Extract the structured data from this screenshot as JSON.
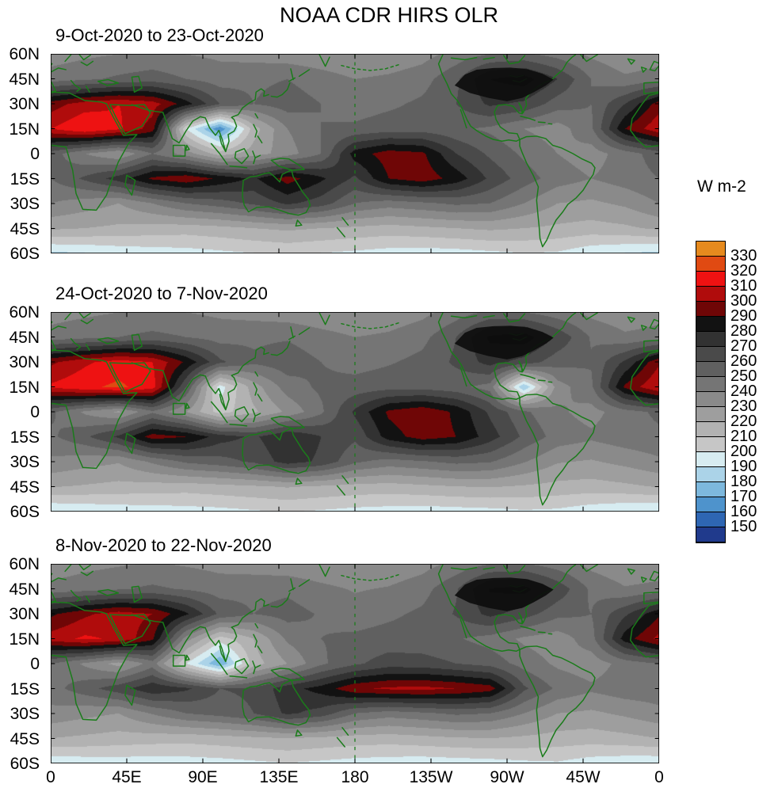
{
  "title": "NOAA CDR HIRS OLR",
  "colors": {
    "coastline_green": "#1a7c1a",
    "frame_black": "#000000",
    "us_boundaries_black": "#0d0d0d",
    "background": "#ffffff"
  },
  "axes": {
    "y_tick_labels": [
      "60N",
      "45N",
      "30N",
      "15N",
      "0",
      "15S",
      "30S",
      "45S",
      "60S"
    ],
    "x_tick_labels": [
      "0",
      "45E",
      "90E",
      "135E",
      "180",
      "135W",
      "90W",
      "45W",
      "0"
    ]
  },
  "colorbar": {
    "label": "W m-2",
    "tick_labels": [
      "330",
      "320",
      "310",
      "300",
      "290",
      "280",
      "270",
      "260",
      "250",
      "240",
      "230",
      "220",
      "210",
      "200",
      "190",
      "180",
      "170",
      "160",
      "150"
    ]
  },
  "chart_data": {
    "type": "heatmap",
    "title": "NOAA CDR HIRS OLR",
    "units": "W m-2",
    "projection": "equirectangular",
    "lon_range": [
      0,
      360
    ],
    "lat_range": [
      60,
      -60
    ],
    "grid_lons": [
      0,
      20,
      40,
      60,
      80,
      100,
      120,
      140,
      160,
      180,
      200,
      220,
      240,
      260,
      280,
      300,
      320,
      340,
      360
    ],
    "grid_lats": [
      60,
      45,
      30,
      15,
      0,
      -15,
      -30,
      -45,
      -60
    ],
    "levels": [
      150,
      160,
      170,
      180,
      190,
      200,
      210,
      220,
      230,
      240,
      250,
      260,
      270,
      280,
      290,
      300,
      310,
      320,
      330
    ],
    "colors_low_to_high": [
      "#203a8c",
      "#2e66b3",
      "#4e93cc",
      "#7db8dd",
      "#abd3e8",
      "#d7ecf1",
      "#c6c6c6",
      "#b2b2b2",
      "#9e9e9e",
      "#8a8a8a",
      "#757575",
      "#606060",
      "#4a4a4a",
      "#323232",
      "#121212",
      "#6f0606",
      "#b00c0c",
      "#ee1212",
      "#e04a12",
      "#e68a1e"
    ],
    "panels": [
      {
        "title": "9-Oct-2020 to 23-Oct-2020",
        "values": [
          [
            235,
            238,
            240,
            242,
            240,
            238,
            236,
            234,
            232,
            230,
            232,
            236,
            244,
            250,
            252,
            246,
            238,
            232,
            235
          ],
          [
            245,
            248,
            252,
            255,
            250,
            245,
            248,
            250,
            245,
            240,
            242,
            246,
            258,
            280,
            285,
            270,
            250,
            242,
            245
          ],
          [
            295,
            305,
            310,
            305,
            285,
            260,
            250,
            255,
            250,
            245,
            248,
            252,
            260,
            272,
            268,
            255,
            250,
            270,
            295
          ],
          [
            310,
            320,
            312,
            295,
            200,
            162,
            215,
            240,
            250,
            252,
            255,
            255,
            252,
            248,
            240,
            235,
            248,
            290,
            308
          ],
          [
            255,
            240,
            230,
            250,
            235,
            215,
            225,
            235,
            250,
            285,
            295,
            292,
            270,
            258,
            248,
            240,
            235,
            245,
            255
          ],
          [
            250,
            262,
            275,
            292,
            298,
            288,
            278,
            295,
            282,
            268,
            290,
            296,
            286,
            268,
            255,
            245,
            240,
            245,
            250
          ],
          [
            240,
            235,
            230,
            240,
            250,
            255,
            262,
            272,
            265,
            250,
            245,
            248,
            252,
            250,
            240,
            230,
            228,
            232,
            240
          ],
          [
            222,
            220,
            218,
            216,
            215,
            217,
            220,
            222,
            220,
            218,
            216,
            218,
            220,
            222,
            220,
            218,
            216,
            218,
            222
          ],
          [
            188,
            190,
            193,
            195,
            196,
            198,
            200,
            202,
            200,
            198,
            196,
            195,
            196,
            198,
            200,
            199,
            193,
            190,
            188
          ]
        ]
      },
      {
        "title": "24-Oct-2020 to 7-Nov-2020",
        "values": [
          [
            236,
            238,
            240,
            241,
            240,
            238,
            236,
            234,
            232,
            231,
            233,
            237,
            245,
            252,
            250,
            244,
            237,
            233,
            236
          ],
          [
            244,
            247,
            250,
            253,
            250,
            246,
            248,
            249,
            244,
            240,
            242,
            247,
            260,
            282,
            286,
            268,
            249,
            242,
            244
          ],
          [
            298,
            308,
            315,
            310,
            288,
            262,
            252,
            256,
            250,
            246,
            249,
            253,
            262,
            274,
            266,
            254,
            251,
            272,
            298
          ],
          [
            312,
            318,
            322,
            315,
            260,
            195,
            225,
            245,
            252,
            254,
            256,
            256,
            253,
            246,
            180,
            235,
            248,
            292,
            310
          ],
          [
            252,
            238,
            228,
            248,
            230,
            205,
            218,
            232,
            248,
            272,
            292,
            298,
            288,
            268,
            252,
            242,
            236,
            246,
            252
          ],
          [
            248,
            258,
            272,
            295,
            290,
            275,
            268,
            280,
            270,
            262,
            285,
            295,
            290,
            275,
            258,
            246,
            242,
            246,
            248
          ],
          [
            238,
            234,
            231,
            242,
            252,
            256,
            262,
            275,
            268,
            252,
            246,
            249,
            253,
            251,
            241,
            231,
            229,
            233,
            238
          ],
          [
            221,
            219,
            217,
            216,
            215,
            217,
            219,
            221,
            219,
            217,
            216,
            218,
            220,
            221,
            219,
            217,
            216,
            218,
            221
          ],
          [
            190,
            192,
            194,
            195,
            196,
            197,
            199,
            201,
            199,
            197,
            196,
            195,
            196,
            197,
            199,
            198,
            194,
            191,
            190
          ]
        ]
      },
      {
        "title": "8-Nov-2020 to 22-Nov-2020",
        "values": [
          [
            234,
            237,
            239,
            241,
            239,
            237,
            235,
            233,
            231,
            230,
            232,
            236,
            243,
            250,
            251,
            245,
            237,
            232,
            234
          ],
          [
            243,
            246,
            249,
            252,
            249,
            245,
            247,
            248,
            243,
            239,
            241,
            246,
            259,
            281,
            284,
            267,
            248,
            241,
            243
          ],
          [
            288,
            298,
            305,
            300,
            282,
            258,
            250,
            254,
            249,
            245,
            248,
            252,
            261,
            273,
            265,
            253,
            250,
            268,
            288
          ],
          [
            305,
            312,
            308,
            292,
            235,
            205,
            220,
            242,
            250,
            252,
            254,
            254,
            251,
            246,
            238,
            234,
            246,
            285,
            303
          ],
          [
            250,
            238,
            226,
            245,
            200,
            170,
            215,
            230,
            248,
            258,
            265,
            264,
            260,
            256,
            246,
            238,
            234,
            244,
            250
          ],
          [
            246,
            256,
            266,
            278,
            272,
            260,
            262,
            276,
            284,
            298,
            302,
            303,
            300,
            295,
            262,
            248,
            242,
            246,
            246
          ],
          [
            237,
            233,
            230,
            241,
            250,
            254,
            260,
            272,
            266,
            250,
            245,
            248,
            252,
            250,
            240,
            230,
            228,
            232,
            237
          ],
          [
            220,
            218,
            216,
            215,
            214,
            216,
            218,
            220,
            218,
            216,
            215,
            217,
            219,
            220,
            218,
            216,
            215,
            217,
            220
          ],
          [
            192,
            194,
            195,
            194,
            195,
            196,
            198,
            200,
            198,
            196,
            195,
            194,
            195,
            196,
            198,
            199,
            195,
            193,
            192
          ]
        ]
      }
    ],
    "legend_position": "right",
    "grid": false
  }
}
